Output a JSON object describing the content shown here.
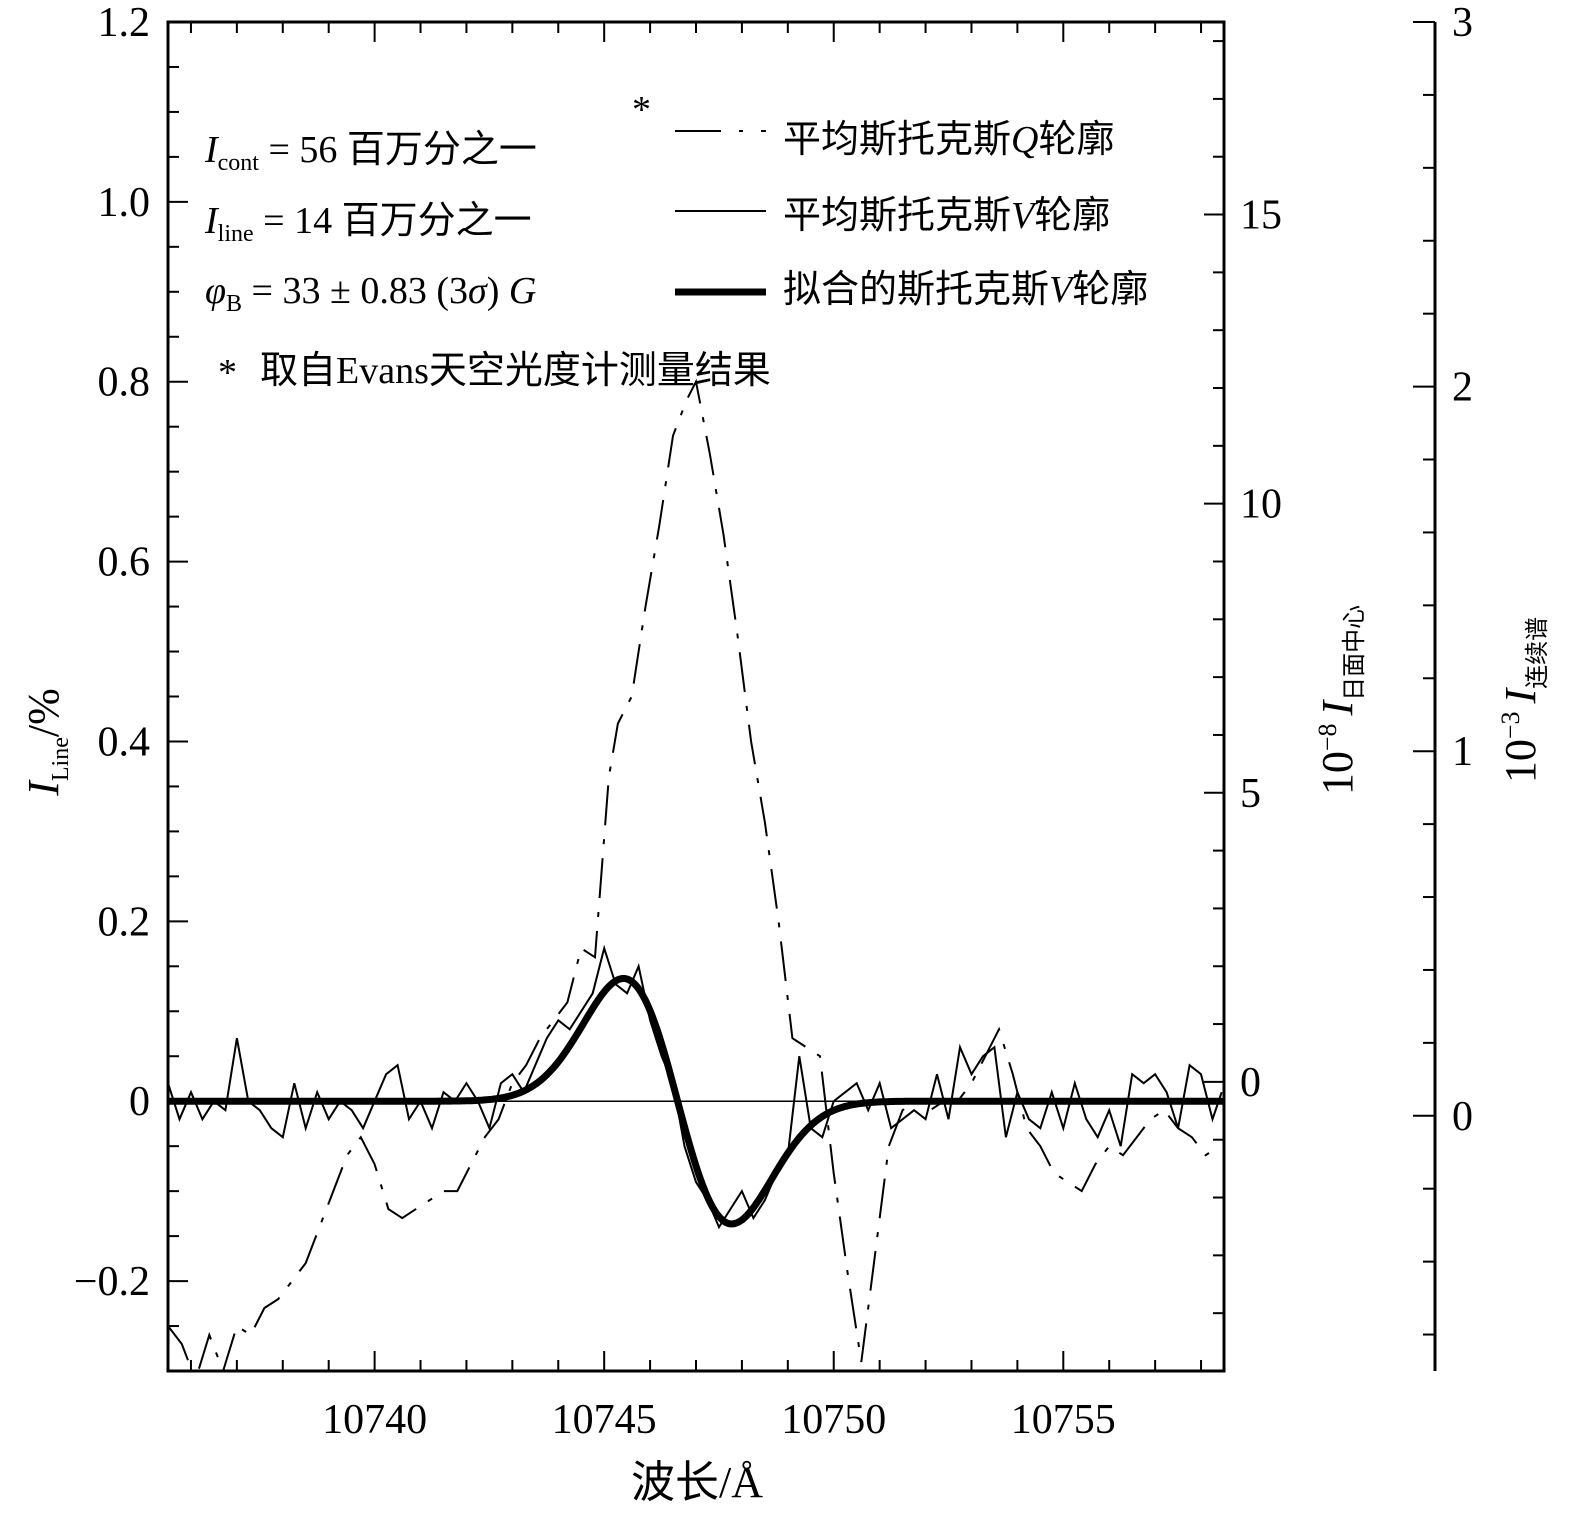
{
  "chart_data": {
    "type": "line",
    "xlabel": "波长/Å",
    "ylabel": "I_Line/%",
    "ylabel_main": "I",
    "ylabel_sub": "Line",
    "ylabel_suffix": "/%",
    "y2label_prefix": "10",
    "y2label_exp": "−8",
    "y2label_main": "I",
    "y2label_sub": "日面中心",
    "y3label_prefix": "10",
    "y3label_exp": "−3",
    "y3label_main": "I",
    "y3label_sub": "连续谱",
    "xlim": [
      10735.5,
      10758.5
    ],
    "ylim": [
      -0.3,
      1.2
    ],
    "y2lim": [
      -5,
      18.33
    ],
    "y3lim": [
      -0.7,
      3
    ],
    "x_ticks": [
      10740,
      10745,
      10750,
      10755
    ],
    "x_tick_labels": [
      "10740",
      "10745",
      "10750",
      "10755"
    ],
    "y_ticks": [
      -0.2,
      0,
      0.2,
      0.4,
      0.6,
      0.8,
      1.0,
      1.2
    ],
    "y_tick_labels": [
      "−0.2",
      "0",
      "0.2",
      "0.4",
      "0.6",
      "0.8",
      "1.0",
      "1.2"
    ],
    "y2_ticks": [
      0,
      5,
      10,
      15
    ],
    "y2_tick_labels": [
      "0",
      "5",
      "10",
      "15"
    ],
    "y3_ticks": [
      0,
      1,
      2,
      3
    ],
    "y3_tick_labels": [
      "0",
      "1",
      "2",
      "3"
    ],
    "zero_line": true,
    "grid": false,
    "legend_position": "top-right",
    "annotations": {
      "icont_main": "I",
      "icont_sub": "cont",
      "icont_rest": " = 56 百万分之一",
      "iline_main": "I",
      "iline_sub": "line",
      "iline_rest": " = 14 百万分之一",
      "phib_main": "φ",
      "phib_sub": "B",
      "phib_rest1": " = 33 ± 0.83 (3",
      "phib_sigma": "σ",
      "phib_rest2": ") ",
      "phib_unit": "G",
      "footnote": "取自Evans天空光度计测量结果",
      "asterisk": "*"
    },
    "series": [
      {
        "name": "平均斯托克斯Q轮廓",
        "name_prefix": "平均斯托克斯",
        "name_italic": "Q",
        "name_suffix": "轮廓",
        "style": "dashed",
        "x": [
          10735.5,
          10735.8,
          10736.1,
          10736.4,
          10736.7,
          10737.0,
          10737.3,
          10737.6,
          10737.9,
          10738.2,
          10738.5,
          10738.8,
          10739.1,
          10739.4,
          10739.7,
          10740.0,
          10740.3,
          10740.6,
          10740.9,
          10741.2,
          10741.5,
          10741.8,
          10742.1,
          10742.4,
          10742.7,
          10743.0,
          10743.3,
          10743.6,
          10743.9,
          10744.2,
          10744.5,
          10744.8,
          10745.1,
          10745.3,
          10745.6,
          10745.9,
          10746.2,
          10746.5,
          10746.8,
          10747.0,
          10747.3,
          10747.6,
          10747.9,
          10748.2,
          10748.5,
          10748.8,
          10749.1,
          10749.4,
          10749.7,
          10750.0,
          10750.3,
          10750.6,
          10750.9,
          10751.2,
          10751.5,
          10751.8,
          10752.1,
          10752.4,
          10752.7,
          10753.0,
          10753.3,
          10753.6,
          10753.9,
          10754.2,
          10754.5,
          10754.8,
          10755.1,
          10755.4,
          10755.7,
          10756.0,
          10756.3,
          10756.6,
          10756.9,
          10757.2,
          10757.5,
          10757.8,
          10758.1,
          10758.4
        ],
        "values": [
          -0.25,
          -0.27,
          -0.31,
          -0.26,
          -0.3,
          -0.25,
          -0.26,
          -0.23,
          -0.22,
          -0.2,
          -0.18,
          -0.14,
          -0.1,
          -0.06,
          -0.04,
          -0.07,
          -0.12,
          -0.13,
          -0.12,
          -0.11,
          -0.1,
          -0.1,
          -0.07,
          -0.04,
          -0.02,
          0.02,
          0.04,
          0.07,
          0.09,
          0.11,
          0.17,
          0.16,
          0.36,
          0.42,
          0.45,
          0.55,
          0.64,
          0.74,
          0.78,
          0.8,
          0.72,
          0.63,
          0.52,
          0.4,
          0.31,
          0.2,
          0.07,
          0.06,
          0.05,
          -0.08,
          -0.19,
          -0.29,
          -0.17,
          -0.05,
          -0.01,
          0.0,
          -0.01,
          0.0,
          0.0,
          0.02,
          0.05,
          0.08,
          0.03,
          -0.03,
          -0.05,
          -0.08,
          -0.09,
          -0.1,
          -0.07,
          -0.05,
          -0.06,
          -0.04,
          -0.02,
          -0.01,
          -0.03,
          -0.04,
          -0.06,
          -0.05
        ]
      },
      {
        "name": "平均斯托克斯V轮廓",
        "name_prefix": "平均斯托克斯",
        "name_italic": "V",
        "name_suffix": "轮廓",
        "style": "thin",
        "x": [
          10735.5,
          10735.75,
          10736.0,
          10736.25,
          10736.5,
          10736.75,
          10737.0,
          10737.25,
          10737.5,
          10737.75,
          10738.0,
          10738.25,
          10738.5,
          10738.75,
          10739.0,
          10739.25,
          10739.5,
          10739.75,
          10740.0,
          10740.25,
          10740.5,
          10740.75,
          10741.0,
          10741.25,
          10741.5,
          10741.75,
          10742.0,
          10742.25,
          10742.5,
          10742.75,
          10743.0,
          10743.25,
          10743.5,
          10743.75,
          10744.0,
          10744.25,
          10744.5,
          10744.75,
          10745.0,
          10745.25,
          10745.5,
          10745.75,
          10746.0,
          10746.25,
          10746.5,
          10746.75,
          10747.0,
          10747.25,
          10747.5,
          10747.75,
          10748.0,
          10748.25,
          10748.5,
          10748.75,
          10749.0,
          10749.25,
          10749.5,
          10749.75,
          10750.0,
          10750.25,
          10750.5,
          10750.75,
          10751.0,
          10751.25,
          10751.5,
          10751.75,
          10752.0,
          10752.25,
          10752.5,
          10752.75,
          10753.0,
          10753.25,
          10753.5,
          10753.75,
          10754.0,
          10754.25,
          10754.5,
          10754.75,
          10755.0,
          10755.25,
          10755.5,
          10755.75,
          10756.0,
          10756.25,
          10756.5,
          10756.75,
          10757.0,
          10757.25,
          10757.5,
          10757.75,
          10758.0,
          10758.25,
          10758.45
        ],
        "values": [
          0.02,
          -0.02,
          0.01,
          -0.02,
          0.0,
          -0.01,
          0.07,
          0.0,
          -0.01,
          -0.03,
          -0.04,
          0.02,
          -0.03,
          0.01,
          -0.02,
          0.0,
          -0.01,
          -0.03,
          0.0,
          0.03,
          0.04,
          -0.02,
          0.0,
          -0.03,
          0.01,
          0.0,
          0.02,
          0.0,
          -0.03,
          0.02,
          0.03,
          0.01,
          0.04,
          0.07,
          0.09,
          0.08,
          0.1,
          0.12,
          0.17,
          0.13,
          0.12,
          0.15,
          0.09,
          0.05,
          0.02,
          -0.05,
          -0.09,
          -0.11,
          -0.14,
          -0.12,
          -0.1,
          -0.13,
          -0.11,
          -0.08,
          -0.06,
          0.05,
          -0.03,
          -0.04,
          0.0,
          0.01,
          0.02,
          -0.01,
          0.02,
          -0.03,
          -0.02,
          -0.01,
          -0.02,
          0.03,
          -0.02,
          0.06,
          0.03,
          0.05,
          0.06,
          -0.04,
          0.01,
          -0.02,
          -0.03,
          0.01,
          -0.03,
          0.02,
          -0.02,
          -0.04,
          -0.01,
          -0.05,
          0.03,
          0.02,
          0.03,
          0.01,
          -0.03,
          0.04,
          0.03,
          -0.02,
          0.01
        ]
      },
      {
        "name": "拟合的斯托克斯V轮廓",
        "name_prefix": "拟合的斯托克斯",
        "name_italic": "V",
        "name_suffix": "轮廓",
        "style": "thick",
        "model": {
          "type": "gaussian_derivative",
          "amplitude": 0.1365,
          "center": 10746.6,
          "sigma": 1.18
        }
      }
    ]
  }
}
